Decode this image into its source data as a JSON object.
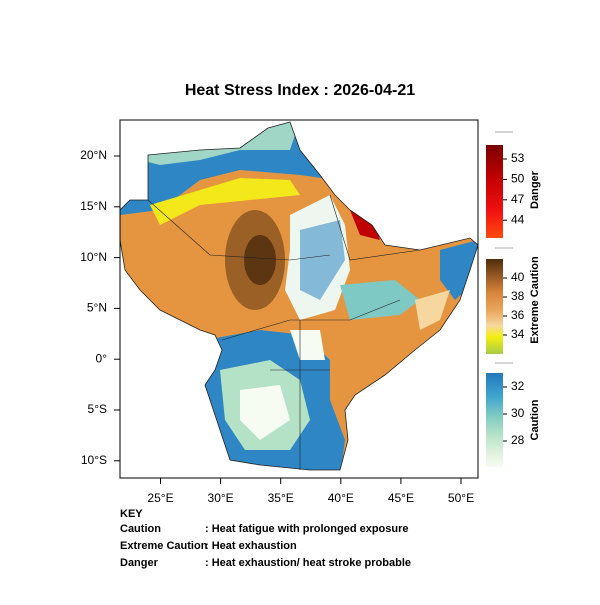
{
  "title": "Heat Stress Index : 2026-04-21",
  "lat_labels": [
    "20°N",
    "15°N",
    "10°N",
    "5°N",
    "0°",
    "5°S",
    "10°S"
  ],
  "lon_labels": [
    "25°E",
    "30°E",
    "35°E",
    "40°E",
    "45°E",
    "50°E"
  ],
  "colorbars": [
    {
      "name": "Danger",
      "ticks": [
        53,
        50,
        47,
        44
      ]
    },
    {
      "name": "Extreme Caution",
      "ticks": [
        40,
        38,
        36,
        34
      ]
    },
    {
      "name": "Caution",
      "ticks": [
        32,
        30,
        28
      ]
    }
  ],
  "key": {
    "title": "KEY",
    "rows": [
      [
        "Caution",
        ": Heat fatigue with prolonged exposure"
      ],
      [
        "Extreme Caution",
        " : Heat exhaustion"
      ],
      [
        "Danger",
        ": Heat exhaustion/ heat stroke probable"
      ]
    ]
  }
}
